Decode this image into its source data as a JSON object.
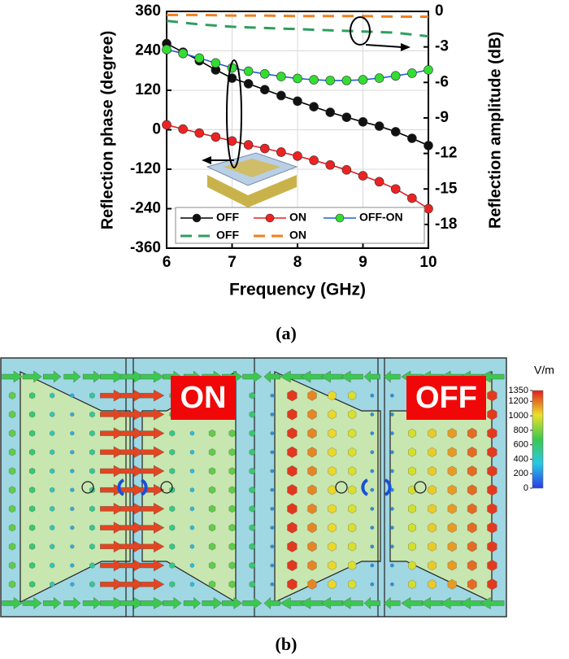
{
  "chart_data": {
    "type": "line",
    "xlabel": "Frequency (GHz)",
    "ylabel": "Reflection phase (degree)",
    "y2label": "Reflection amplitude (dB)",
    "xlim": [
      6,
      10
    ],
    "xticks": [
      6,
      7,
      8,
      9,
      10
    ],
    "ylim": [
      -360,
      360
    ],
    "yticks": [
      -360,
      -240,
      -120,
      0,
      120,
      240,
      360
    ],
    "y2lim": [
      -20,
      0
    ],
    "y2ticks": [
      0,
      -3,
      -6,
      -9,
      -12,
      -15,
      -18
    ],
    "grid": true,
    "legend": "lower-left",
    "series": [
      {
        "name": "OFF",
        "color": "#000000",
        "marker_color": "#111111",
        "dashed": false,
        "x": [
          6,
          6.25,
          6.5,
          6.75,
          7,
          7.25,
          7.5,
          7.75,
          8,
          8.25,
          8.5,
          8.75,
          9,
          9.25,
          9.5,
          9.75,
          10
        ],
        "values": [
          262,
          236,
          210,
          182,
          157,
          140,
          122,
          104,
          87,
          70,
          53,
          38,
          24,
          11,
          -6,
          -26,
          -48
        ]
      },
      {
        "name": "ON",
        "color": "#e02020",
        "marker_color": "#ee2222",
        "dashed": false,
        "x": [
          6,
          6.25,
          6.5,
          6.75,
          7,
          7.25,
          7.5,
          7.75,
          8,
          8.25,
          8.5,
          8.75,
          9,
          9.25,
          9.5,
          9.75,
          10
        ],
        "values": [
          15,
          2,
          -10,
          -22,
          -34,
          -46,
          -57,
          -68,
          -80,
          -93,
          -107,
          -122,
          -140,
          -158,
          -180,
          -208,
          -240
        ]
      },
      {
        "name": "OFF-ON",
        "color": "#1f5fd6",
        "marker_color": "#33dd33",
        "dashed": false,
        "x": [
          6,
          6.25,
          6.5,
          6.75,
          7,
          7.25,
          7.5,
          7.75,
          8,
          8.25,
          8.5,
          8.75,
          9,
          9.25,
          9.5,
          9.75,
          10
        ],
        "values": [
          244,
          232,
          218,
          203,
          188,
          178,
          170,
          162,
          156,
          152,
          150,
          150,
          152,
          157,
          164,
          172,
          182
        ]
      },
      {
        "name": "OFF",
        "color": "#2e9e5e",
        "dashed": true,
        "axis": "y2",
        "x": [
          6,
          6.5,
          7,
          7.5,
          8,
          8.5,
          9,
          9.5,
          10
        ],
        "values": [
          -0.8,
          -1.1,
          -1.3,
          -1.4,
          -1.5,
          -1.6,
          -1.7,
          -1.8,
          -2.1
        ]
      },
      {
        "name": "ON",
        "color": "#f07f1f",
        "dashed": true,
        "axis": "y2",
        "x": [
          6,
          6.5,
          7,
          7.5,
          8,
          8.5,
          9,
          9.5,
          10
        ],
        "values": [
          -0.3,
          -0.3,
          -0.35,
          -0.35,
          -0.4,
          -0.4,
          -0.4,
          -0.45,
          -0.45
        ]
      }
    ]
  },
  "figure_a_caption": "(a)",
  "figure_b": {
    "labels": [
      "ON",
      "OFF"
    ],
    "colorbar": {
      "title": "V/m",
      "ticks": [
        1350,
        1200,
        1000,
        800,
        600,
        400,
        200,
        0
      ]
    },
    "caption": "(b)"
  }
}
